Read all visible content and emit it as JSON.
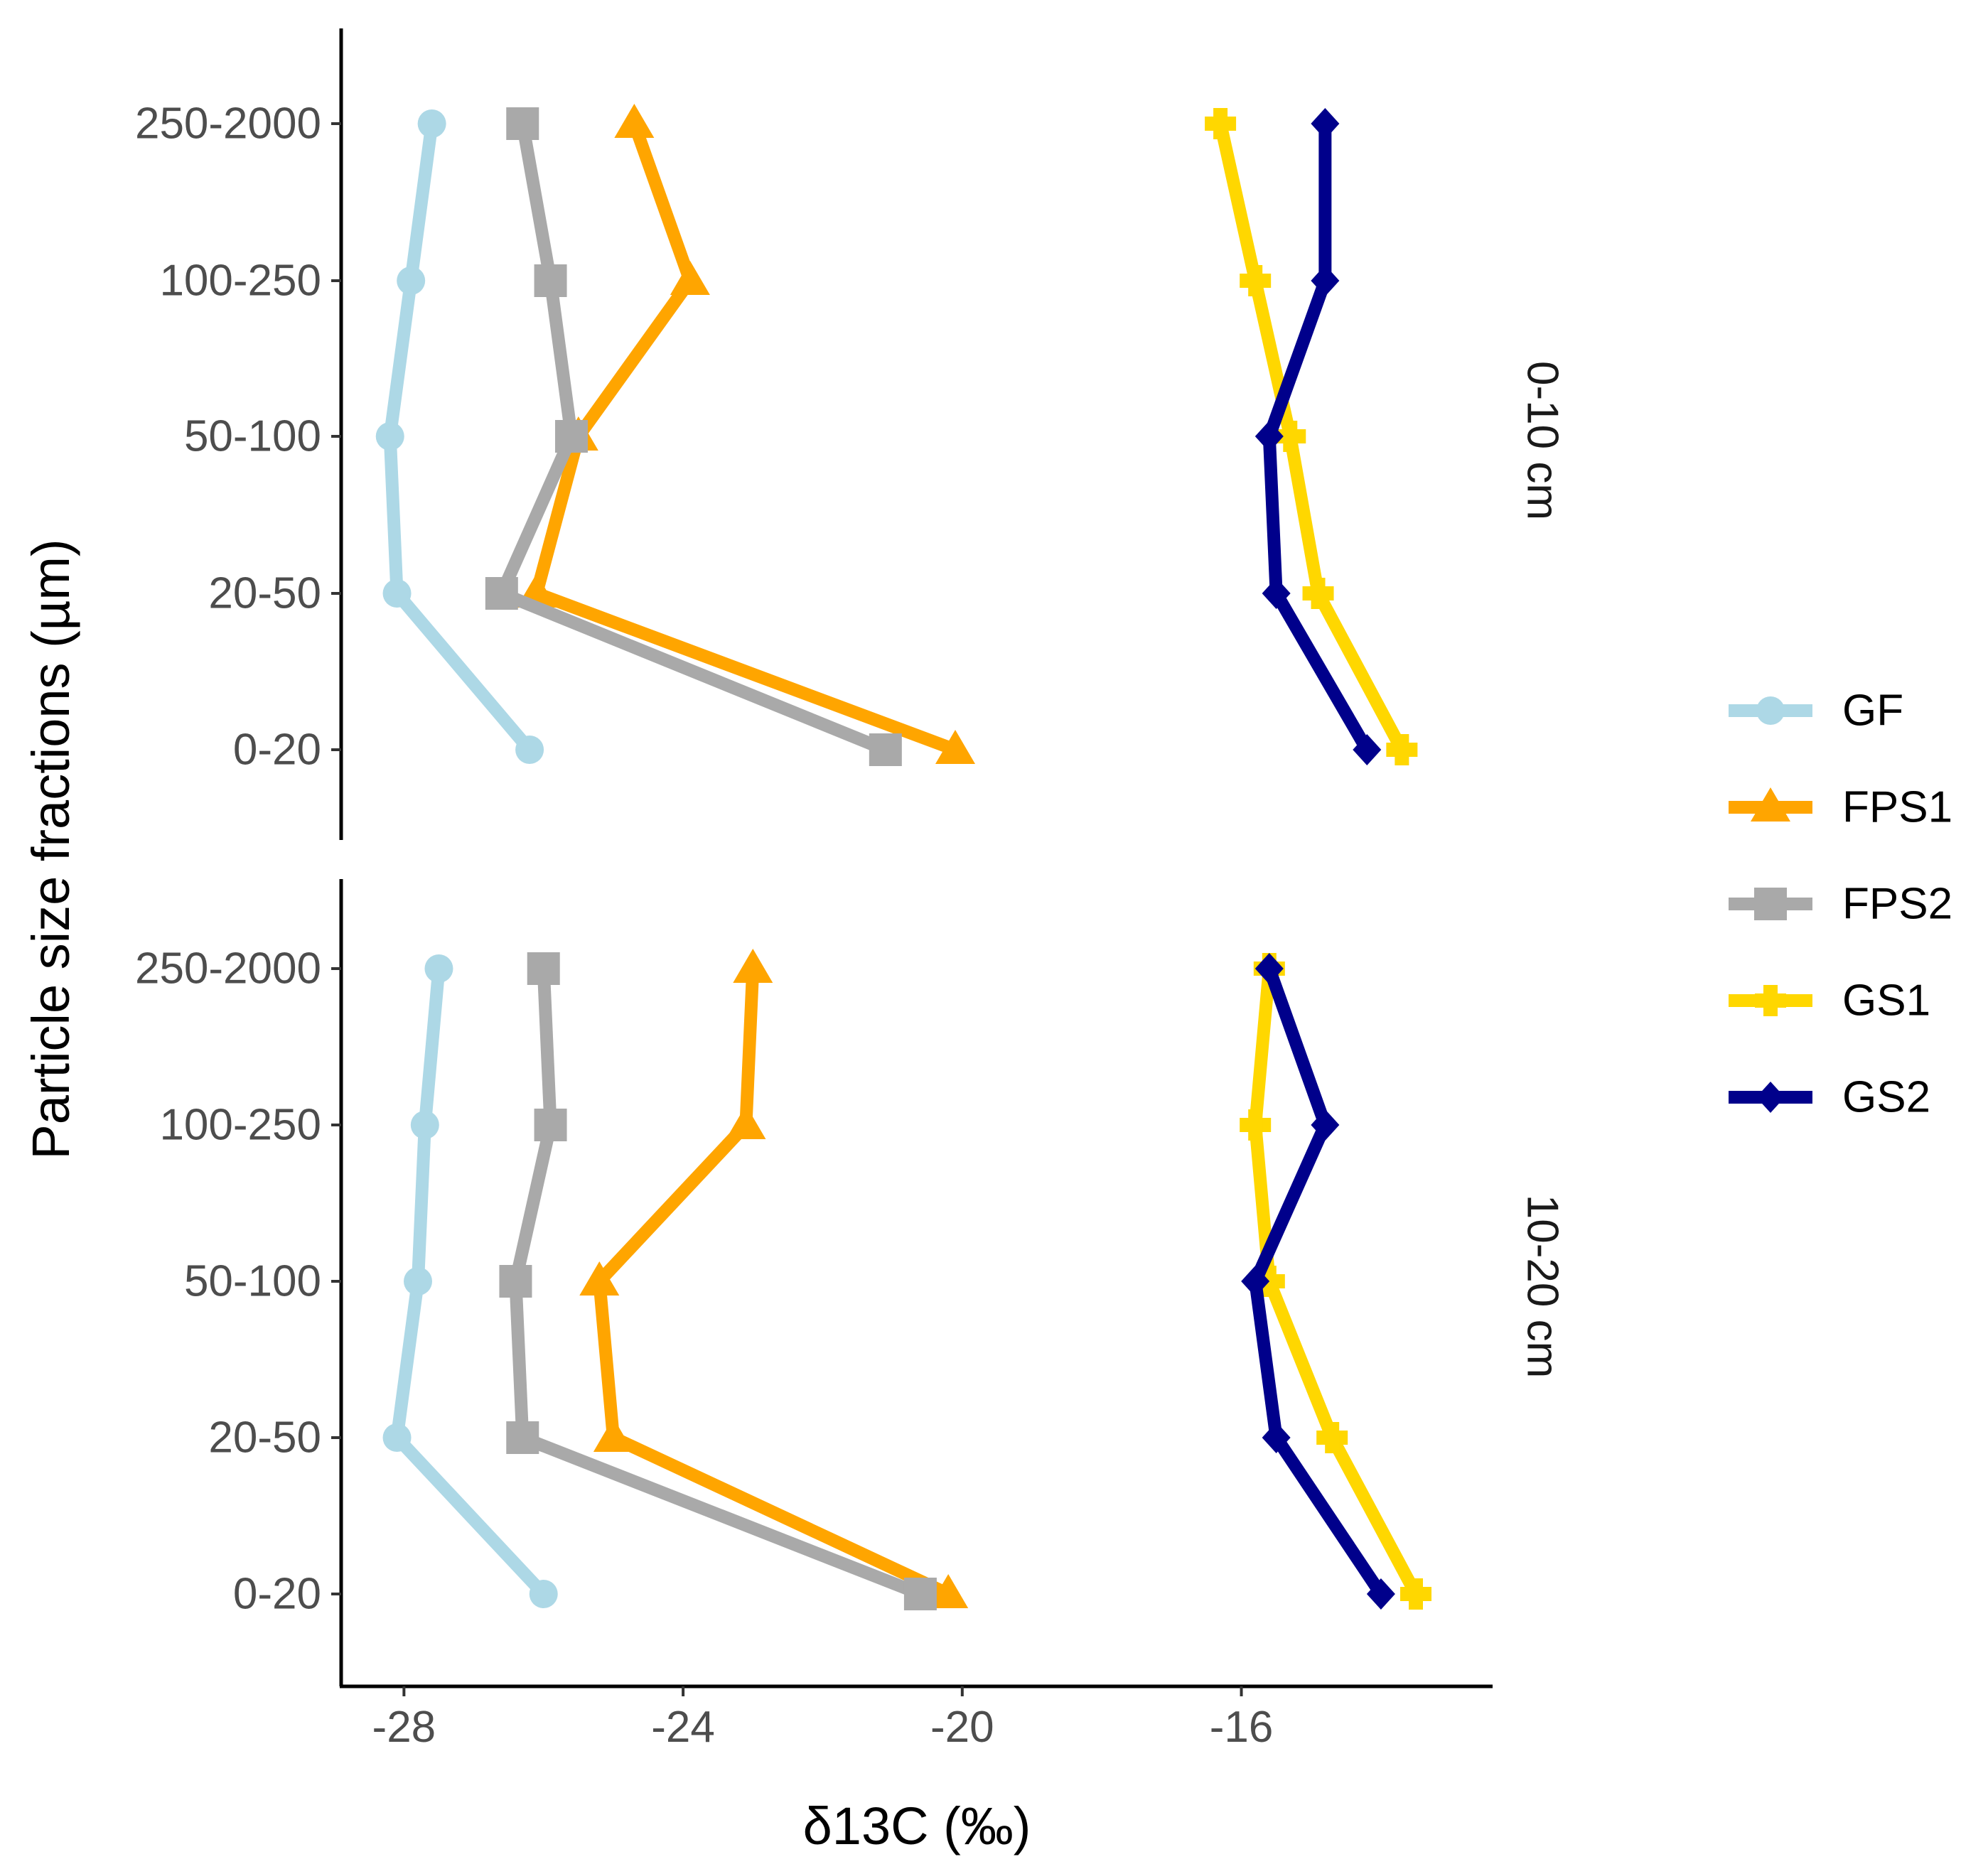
{
  "chart_data": {
    "type": "line",
    "xlabel": "δ13C (‰)",
    "ylabel": "Particle size fractions (µm)",
    "xlim": [
      -28.9,
      -12.4
    ],
    "xticks": [
      -28,
      -24,
      -20,
      -16
    ],
    "xtick_labels": [
      "-28",
      "-24",
      "-20",
      "-16"
    ],
    "categories": [
      "0-20",
      "20-50",
      "50-100",
      "100-250",
      "250-2000"
    ],
    "legend_position": "right",
    "legend": [
      {
        "name": "GF",
        "color": "#ADD8E6",
        "marker": "circle"
      },
      {
        "name": "FPS1",
        "color": "#FFA500",
        "marker": "triangle"
      },
      {
        "name": "FPS2",
        "color": "#A9A9A9",
        "marker": "square"
      },
      {
        "name": "GS1",
        "color": "#FFD700",
        "marker": "cross"
      },
      {
        "name": "GS2",
        "color": "#00008B",
        "marker": "diamond"
      }
    ],
    "panels": [
      {
        "label": "0-10 cm",
        "series": [
          {
            "name": "GF",
            "values": [
              -26.2,
              -28.1,
              -28.2,
              -27.9,
              -27.6
            ]
          },
          {
            "name": "FPS1",
            "values": [
              -20.1,
              -26.1,
              -25.5,
              -23.9,
              -24.7
            ]
          },
          {
            "name": "FPS2",
            "values": [
              -21.1,
              -26.6,
              -25.6,
              -25.9,
              -26.3
            ]
          },
          {
            "name": "GS1",
            "values": [
              -13.7,
              -14.9,
              -15.3,
              -15.8,
              -16.3
            ]
          },
          {
            "name": "GS2",
            "values": [
              -14.2,
              -15.5,
              -15.6,
              -14.8,
              -14.8
            ]
          }
        ]
      },
      {
        "label": "10-20 cm",
        "series": [
          {
            "name": "GF",
            "values": [
              -26.0,
              -28.1,
              -27.8,
              -27.7,
              -27.5
            ]
          },
          {
            "name": "FPS1",
            "values": [
              -20.2,
              -25.0,
              -25.2,
              -23.1,
              -23.0
            ]
          },
          {
            "name": "FPS2",
            "values": [
              -20.6,
              -26.3,
              -26.4,
              -25.9,
              -26.0
            ]
          },
          {
            "name": "GS1",
            "values": [
              -13.5,
              -14.7,
              -15.6,
              -15.8,
              -15.6
            ]
          },
          {
            "name": "GS2",
            "values": [
              -14.0,
              -15.5,
              -15.8,
              -14.8,
              -15.6
            ]
          }
        ]
      }
    ]
  }
}
